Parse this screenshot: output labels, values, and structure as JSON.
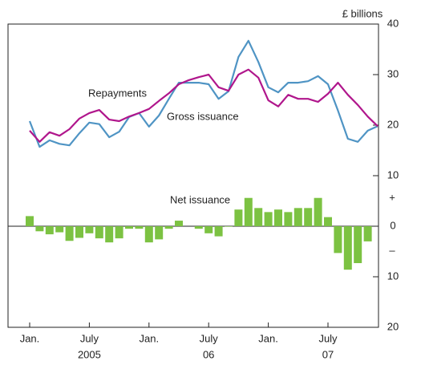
{
  "chart_data": {
    "type": "line",
    "unit_label": "£ billions",
    "categories": [
      "Jan.",
      null,
      null,
      null,
      null,
      null,
      "July",
      null,
      null,
      null,
      null,
      null,
      "Jan.",
      null,
      null,
      null,
      null,
      null,
      "July",
      null,
      null,
      null,
      null,
      null,
      "Jan.",
      null,
      null,
      null,
      null,
      null,
      "July",
      null,
      null,
      null,
      null,
      null
    ],
    "category_years": [
      null,
      null,
      null,
      null,
      null,
      null,
      "2005",
      null,
      null,
      null,
      null,
      null,
      null,
      null,
      null,
      null,
      null,
      null,
      "06",
      null,
      null,
      null,
      null,
      null,
      null,
      null,
      null,
      null,
      null,
      null,
      "07",
      null,
      null,
      null,
      null,
      null
    ],
    "series": [
      {
        "name": "Gross issuance",
        "type": "line",
        "color": "#4f94c4",
        "values": [
          20.8,
          15.7,
          17.0,
          16.3,
          16.0,
          18.4,
          20.5,
          20.2,
          17.6,
          18.7,
          21.6,
          22.4,
          19.7,
          21.9,
          25.2,
          28.4,
          28.4,
          28.4,
          28.1,
          25.2,
          26.7,
          33.5,
          36.7,
          32.5,
          27.5,
          26.5,
          28.4,
          28.4,
          28.7,
          29.7,
          28.1,
          22.9,
          17.3,
          16.7,
          18.9,
          19.8
        ]
      },
      {
        "name": "Repayments",
        "type": "line",
        "color": "#b0168c",
        "values": [
          18.9,
          16.7,
          18.6,
          17.9,
          19.2,
          21.3,
          22.4,
          23.0,
          21.1,
          20.8,
          21.7,
          22.4,
          23.2,
          24.8,
          26.3,
          28.1,
          28.9,
          29.5,
          30.0,
          27.5,
          26.8,
          30.0,
          31.0,
          29.4,
          24.9,
          23.7,
          26.0,
          25.2,
          25.2,
          24.6,
          26.2,
          28.4,
          26.0,
          24.0,
          21.7,
          19.8
        ]
      },
      {
        "name": "Net issuance",
        "type": "bar",
        "color": "#7cc242",
        "values": [
          2.0,
          -1.0,
          -1.6,
          -1.2,
          -2.9,
          -2.3,
          -1.4,
          -2.4,
          -3.2,
          -2.4,
          -0.5,
          -0.5,
          -3.2,
          -2.6,
          -0.5,
          1.1,
          0,
          -0.5,
          -1.4,
          -2.0,
          -0.1,
          3.3,
          5.6,
          3.6,
          2.8,
          3.3,
          2.8,
          3.6,
          3.6,
          5.6,
          1.8,
          -5.3,
          -8.6,
          -7.3,
          -3.0,
          null
        ]
      }
    ],
    "ylim": [
      -20,
      40
    ],
    "yticks": [
      {
        "value": -20,
        "label": "20"
      },
      {
        "value": -10,
        "label": "10"
      },
      0,
      10,
      20,
      30,
      40
    ],
    "sign_labels": [
      "+",
      "–"
    ]
  }
}
